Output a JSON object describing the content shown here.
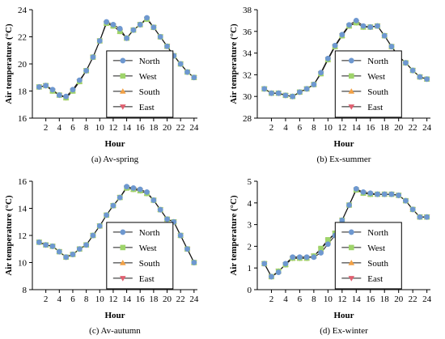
{
  "colors": {
    "North": "#6e98d0",
    "West": "#9ed46a",
    "South": "#f2a146",
    "East": "#e06070",
    "line": "#1a1a1a"
  },
  "chart_data": [
    {
      "type": "line",
      "caption": "(a) Av-spring",
      "xlabel": "Hour",
      "ylabel": "Air temperature (°C)",
      "ylim": [
        16,
        24
      ],
      "yticks": [
        16,
        18,
        20,
        22,
        24
      ],
      "xticks": [
        2,
        4,
        6,
        8,
        10,
        12,
        14,
        16,
        18,
        20,
        22,
        24
      ],
      "xlim": [
        0,
        24.5
      ],
      "legend": [
        "North",
        "West",
        "South",
        "East"
      ],
      "legend_position": "bottom-right",
      "x": [
        1,
        2,
        3,
        4,
        5,
        6,
        7,
        8,
        9,
        10,
        11,
        12,
        13,
        14,
        15,
        16,
        17,
        18,
        19,
        20,
        21,
        22,
        23,
        24
      ],
      "series": [
        {
          "name": "North",
          "values": [
            18.3,
            18.4,
            18.1,
            17.7,
            17.6,
            18.1,
            18.8,
            19.5,
            20.5,
            21.7,
            23.1,
            22.9,
            22.6,
            21.9,
            22.5,
            22.9,
            23.4,
            22.7,
            22.0,
            21.3,
            20.6,
            20.0,
            19.4,
            19.0
          ]
        },
        {
          "name": "West",
          "values": [
            18.3,
            18.4,
            18.0,
            17.7,
            17.5,
            18.0,
            18.7,
            19.5,
            20.5,
            21.7,
            23.0,
            22.8,
            22.4,
            21.9,
            22.5,
            22.9,
            23.3,
            22.7,
            22.0,
            21.3,
            20.6,
            20.0,
            19.4,
            19.0
          ]
        },
        {
          "name": "South",
          "values": [
            18.3,
            18.4,
            18.0,
            17.7,
            17.5,
            18.0,
            18.7,
            19.5,
            20.5,
            21.7,
            23.0,
            22.8,
            22.4,
            21.9,
            22.5,
            22.9,
            23.3,
            22.7,
            22.0,
            21.3,
            20.6,
            20.0,
            19.4,
            19.0
          ]
        },
        {
          "name": "East",
          "values": [
            18.3,
            18.4,
            18.0,
            17.7,
            17.5,
            18.0,
            18.7,
            19.5,
            20.5,
            21.7,
            23.0,
            22.8,
            22.4,
            21.9,
            22.5,
            22.9,
            23.3,
            22.7,
            22.0,
            21.3,
            20.6,
            20.0,
            19.4,
            19.0
          ]
        }
      ]
    },
    {
      "type": "line",
      "caption": "(b) Ex-summer",
      "xlabel": "Hour",
      "ylabel": "Air temperature (°C)",
      "ylim": [
        28,
        38
      ],
      "yticks": [
        28,
        30,
        32,
        34,
        36,
        38
      ],
      "xticks": [
        2,
        4,
        6,
        8,
        10,
        12,
        14,
        16,
        18,
        20,
        22,
        24
      ],
      "xlim": [
        0,
        24.5
      ],
      "legend": [
        "North",
        "West",
        "South",
        "East"
      ],
      "legend_position": "bottom-right",
      "x": [
        1,
        2,
        3,
        4,
        5,
        6,
        7,
        8,
        9,
        10,
        11,
        12,
        13,
        14,
        15,
        16,
        17,
        18,
        19,
        20,
        21,
        22,
        23,
        24
      ],
      "series": [
        {
          "name": "North",
          "values": [
            30.7,
            30.3,
            30.3,
            30.1,
            30.0,
            30.4,
            30.7,
            31.1,
            32.2,
            33.5,
            34.7,
            35.7,
            36.6,
            37.0,
            36.5,
            36.4,
            36.5,
            35.6,
            34.6,
            33.7,
            33.1,
            32.4,
            31.8,
            31.6
          ]
        },
        {
          "name": "West",
          "values": [
            30.7,
            30.3,
            30.3,
            30.1,
            30.0,
            30.4,
            30.7,
            31.1,
            32.1,
            33.4,
            34.6,
            35.6,
            36.5,
            36.8,
            36.4,
            36.4,
            36.5,
            35.6,
            34.6,
            33.7,
            33.1,
            32.4,
            31.8,
            31.6
          ]
        },
        {
          "name": "South",
          "values": [
            30.7,
            30.3,
            30.3,
            30.1,
            30.0,
            30.4,
            30.7,
            31.1,
            32.1,
            33.4,
            34.6,
            35.6,
            36.5,
            36.8,
            36.4,
            36.4,
            36.5,
            35.6,
            34.6,
            33.7,
            33.1,
            32.4,
            31.8,
            31.6
          ]
        },
        {
          "name": "East",
          "values": [
            30.7,
            30.3,
            30.3,
            30.1,
            30.0,
            30.4,
            30.7,
            31.1,
            32.1,
            33.4,
            34.6,
            35.6,
            36.5,
            36.8,
            36.4,
            36.4,
            36.5,
            35.6,
            34.6,
            33.7,
            33.1,
            32.4,
            31.8,
            31.6
          ]
        }
      ]
    },
    {
      "type": "line",
      "caption": "(c) Av-autumn",
      "xlabel": "Hour",
      "ylabel": "Air temperature (°C)",
      "ylim": [
        8,
        16
      ],
      "yticks": [
        8,
        10,
        12,
        14,
        16
      ],
      "xticks": [
        2,
        4,
        6,
        8,
        10,
        12,
        14,
        16,
        18,
        20,
        22,
        24
      ],
      "xlim": [
        0,
        24.5
      ],
      "legend": [
        "North",
        "West",
        "South",
        "East"
      ],
      "legend_position": "bottom-right",
      "x": [
        1,
        2,
        3,
        4,
        5,
        6,
        7,
        8,
        9,
        10,
        11,
        12,
        13,
        14,
        15,
        16,
        17,
        18,
        19,
        20,
        21,
        22,
        23,
        24
      ],
      "series": [
        {
          "name": "North",
          "values": [
            11.5,
            11.3,
            11.2,
            10.8,
            10.4,
            10.6,
            11.0,
            11.3,
            12.0,
            12.7,
            13.5,
            14.2,
            14.8,
            15.6,
            15.5,
            15.4,
            15.2,
            14.6,
            13.9,
            13.2,
            13.0,
            12.0,
            11.0,
            10.0
          ]
        },
        {
          "name": "West",
          "values": [
            11.5,
            11.3,
            11.2,
            10.8,
            10.4,
            10.6,
            11.0,
            11.3,
            12.0,
            12.7,
            13.5,
            14.2,
            14.8,
            15.5,
            15.4,
            15.3,
            15.1,
            14.6,
            13.9,
            13.2,
            13.0,
            12.0,
            11.0,
            10.0
          ]
        },
        {
          "name": "South",
          "values": [
            11.5,
            11.3,
            11.2,
            10.8,
            10.4,
            10.6,
            11.0,
            11.3,
            12.0,
            12.7,
            13.5,
            14.2,
            14.8,
            15.5,
            15.4,
            15.3,
            15.1,
            14.6,
            13.9,
            13.2,
            13.0,
            12.0,
            11.0,
            10.0
          ]
        },
        {
          "name": "East",
          "values": [
            11.5,
            11.3,
            11.2,
            10.8,
            10.4,
            10.6,
            11.0,
            11.3,
            12.0,
            12.7,
            13.5,
            14.2,
            14.8,
            15.5,
            15.4,
            15.3,
            15.1,
            14.6,
            13.9,
            13.2,
            13.0,
            12.0,
            11.0,
            10.0
          ]
        }
      ]
    },
    {
      "type": "line",
      "caption": "(d) Ex-winter",
      "xlabel": "Hour",
      "ylabel": "Air temperature (°C)",
      "ylim": [
        0,
        5
      ],
      "yticks": [
        0,
        1,
        2,
        3,
        4,
        5
      ],
      "xticks": [
        2,
        4,
        6,
        8,
        10,
        12,
        14,
        16,
        18,
        20,
        22,
        24
      ],
      "xlim": [
        0,
        24.5
      ],
      "legend": [
        "North",
        "West",
        "South",
        "East"
      ],
      "legend_position": "bottom-right",
      "x": [
        1,
        2,
        3,
        4,
        5,
        6,
        7,
        8,
        9,
        10,
        11,
        12,
        13,
        14,
        15,
        16,
        17,
        18,
        19,
        20,
        21,
        22,
        23,
        24
      ],
      "series": [
        {
          "name": "North",
          "values": [
            1.2,
            0.6,
            0.8,
            1.2,
            1.5,
            1.5,
            1.5,
            1.5,
            1.7,
            2.1,
            2.5,
            3.2,
            3.9,
            4.65,
            4.5,
            4.45,
            4.4,
            4.4,
            4.4,
            4.35,
            4.1,
            3.7,
            3.35,
            3.35
          ]
        },
        {
          "name": "West",
          "values": [
            1.2,
            0.6,
            0.85,
            1.15,
            1.45,
            1.45,
            1.45,
            1.55,
            1.9,
            2.3,
            2.6,
            3.2,
            3.9,
            4.6,
            4.45,
            4.4,
            4.4,
            4.4,
            4.4,
            4.35,
            4.1,
            3.7,
            3.35,
            3.35
          ]
        },
        {
          "name": "South",
          "values": [
            1.2,
            0.6,
            0.85,
            1.15,
            1.45,
            1.45,
            1.45,
            1.55,
            1.85,
            2.25,
            2.6,
            3.2,
            3.9,
            4.6,
            4.45,
            4.4,
            4.4,
            4.4,
            4.4,
            4.35,
            4.1,
            3.7,
            3.35,
            3.35
          ]
        },
        {
          "name": "East",
          "values": [
            1.2,
            0.6,
            0.85,
            1.15,
            1.45,
            1.45,
            1.45,
            1.55,
            1.85,
            2.25,
            2.6,
            3.2,
            3.9,
            4.6,
            4.45,
            4.4,
            4.4,
            4.4,
            4.4,
            4.35,
            4.1,
            3.7,
            3.35,
            3.35
          ]
        }
      ]
    }
  ]
}
